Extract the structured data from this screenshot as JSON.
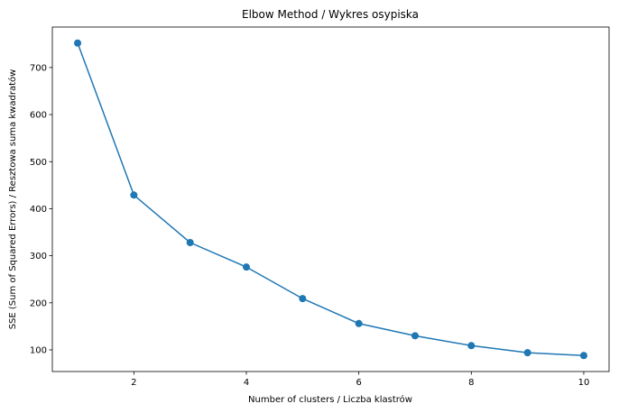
{
  "chart_data": {
    "type": "line",
    "title": "Elbow Method / Wykres osypiska",
    "xlabel": "Number of clusters / Liczba klastrów",
    "ylabel": "SSE (Sum of Squared Errors) / Resztowa suma kwadratów",
    "x": [
      1,
      2,
      3,
      4,
      5,
      6,
      7,
      8,
      9,
      10
    ],
    "series": [
      {
        "values": [
          752,
          429,
          328,
          276,
          209,
          156,
          130,
          109,
          94,
          88
        ]
      }
    ],
    "xlim": [
      0.55,
      10.45
    ],
    "ylim": [
      54,
      786
    ],
    "x_ticks": [
      2,
      4,
      6,
      8,
      10
    ],
    "y_ticks": [
      100,
      200,
      300,
      400,
      500,
      600,
      700
    ],
    "markers": true,
    "grid": false,
    "color": "#1f77b4"
  }
}
